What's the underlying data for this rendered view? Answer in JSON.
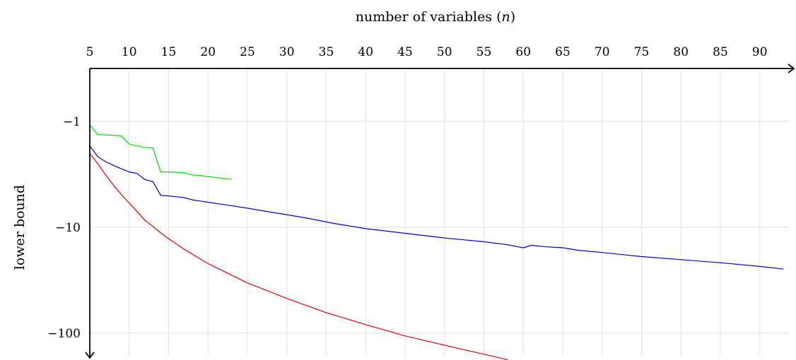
{
  "chart_data": {
    "type": "line",
    "xlabel_prefix": "number of variables (",
    "xlabel_var": "n",
    "xlabel_suffix": ")",
    "ylabel": "lower bound",
    "x_axis_position": "top",
    "yscale": "log-negative",
    "xlim": [
      5,
      93
    ],
    "ylim": [
      -1,
      -100
    ],
    "xticks": [
      5,
      10,
      15,
      20,
      25,
      30,
      35,
      40,
      45,
      50,
      55,
      60,
      65,
      70,
      75,
      80,
      85,
      90
    ],
    "yticks": [
      {
        "value": -1,
        "label": "−1"
      },
      {
        "value": -10,
        "label": "−10"
      },
      {
        "value": -100,
        "label": "−100"
      }
    ],
    "grid": true,
    "series": [
      {
        "color": "#00dd00",
        "x": [
          5,
          6,
          7,
          8,
          9,
          10,
          11,
          12,
          13,
          14,
          15,
          16,
          17,
          18,
          19,
          20,
          21,
          22,
          23
        ],
        "y": [
          -1.08,
          -1.33,
          -1.34,
          -1.35,
          -1.37,
          -1.64,
          -1.7,
          -1.76,
          -1.78,
          -3.0,
          -3.0,
          -3.02,
          -3.06,
          -3.2,
          -3.24,
          -3.32,
          -3.38,
          -3.46,
          -3.5
        ]
      },
      {
        "color": "#0000cc",
        "x": [
          5,
          6,
          7,
          8,
          9,
          10,
          11,
          12,
          13,
          14,
          15,
          16,
          17,
          18,
          19,
          20,
          22,
          25,
          28,
          30,
          33,
          36,
          40,
          45,
          50,
          55,
          58,
          60,
          61,
          63,
          65,
          67,
          70,
          75,
          80,
          85,
          90,
          93
        ],
        "y": [
          -1.7,
          -2.15,
          -2.4,
          -2.6,
          -2.8,
          -3.0,
          -3.1,
          -3.55,
          -3.7,
          -5.0,
          -5.05,
          -5.15,
          -5.25,
          -5.5,
          -5.65,
          -5.8,
          -6.1,
          -6.6,
          -7.2,
          -7.6,
          -8.3,
          -9.2,
          -10.3,
          -11.4,
          -12.6,
          -13.7,
          -14.6,
          -15.6,
          -14.8,
          -15.3,
          -15.6,
          -16.5,
          -17.3,
          -18.9,
          -20.2,
          -21.6,
          -23.4,
          -24.8
        ]
      },
      {
        "color": "#e00000",
        "x": [
          5,
          6,
          7,
          8,
          9,
          10,
          11,
          12,
          13,
          14,
          15,
          17,
          20,
          25,
          30,
          35,
          40,
          45,
          50,
          55,
          58
        ],
        "y": [
          -2.0,
          -2.5,
          -3.2,
          -4.0,
          -4.9,
          -5.9,
          -7.1,
          -8.6,
          -9.8,
          -11.3,
          -12.8,
          -16.2,
          -22.0,
          -33.5,
          -47.0,
          -64.0,
          -83.0,
          -106.0,
          -130.0,
          -158.0,
          -178.0
        ]
      }
    ]
  }
}
